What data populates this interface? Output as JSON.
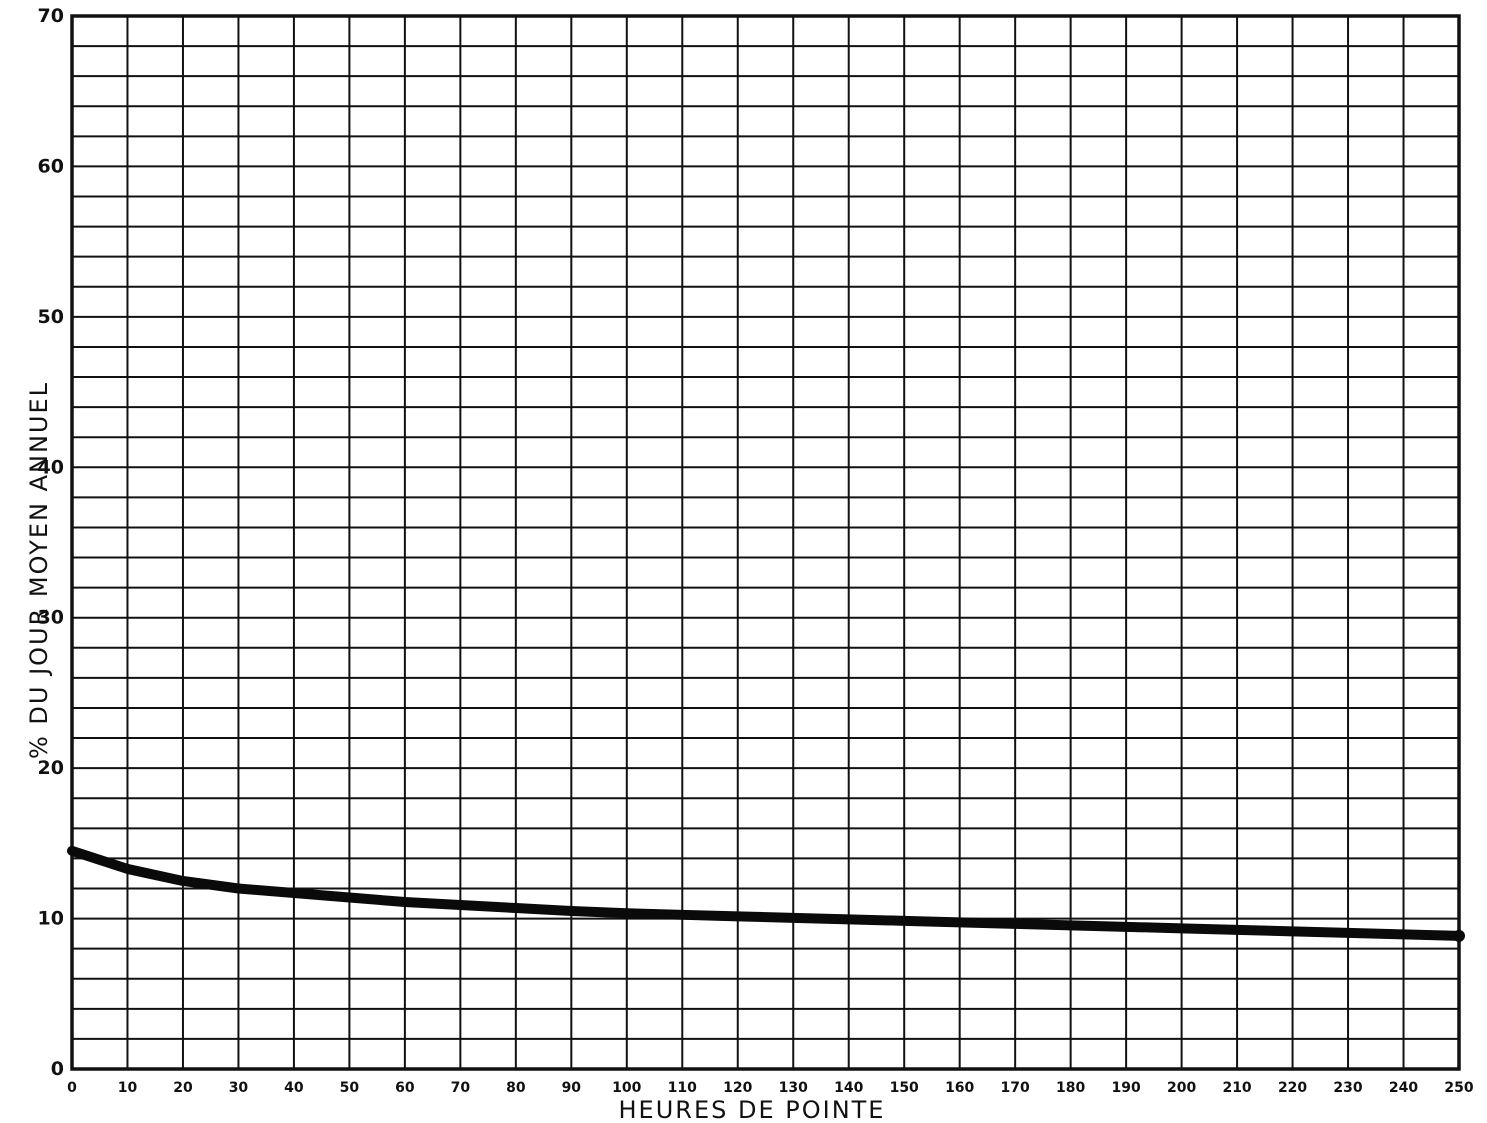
{
  "chart_data": {
    "type": "line",
    "title": "",
    "xlabel": "HEURES DE POINTE",
    "ylabel": "% DU JOUR MOYEN ANNUEL",
    "xlim": [
      0,
      250
    ],
    "ylim": [
      0,
      70
    ],
    "grid": true,
    "x_tick_labels": [
      "0",
      "10",
      "20",
      "30",
      "40",
      "50",
      "60",
      "70",
      "80",
      "90",
      "100",
      "110",
      "120",
      "130",
      "140",
      "150",
      "160",
      "170",
      "180",
      "190",
      "200",
      "210",
      "220",
      "230",
      "240",
      "250"
    ],
    "y_tick_labels": [
      "0",
      "10",
      "20",
      "30",
      "40",
      "50",
      "60",
      "70"
    ],
    "series": [
      {
        "x": [
          0,
          5,
          10,
          20,
          30,
          40,
          50,
          60,
          70,
          80,
          90,
          100,
          110,
          120,
          130,
          140,
          150,
          160,
          170,
          180,
          190,
          200,
          210,
          220,
          230,
          240,
          250
        ],
        "y": [
          14.5,
          13.9,
          13.3,
          12.5,
          12.0,
          11.7,
          11.4,
          11.1,
          10.9,
          10.7,
          10.5,
          10.35,
          10.25,
          10.15,
          10.05,
          9.95,
          9.85,
          9.75,
          9.65,
          9.55,
          9.45,
          9.35,
          9.25,
          9.15,
          9.05,
          8.95,
          8.85
        ]
      }
    ]
  }
}
